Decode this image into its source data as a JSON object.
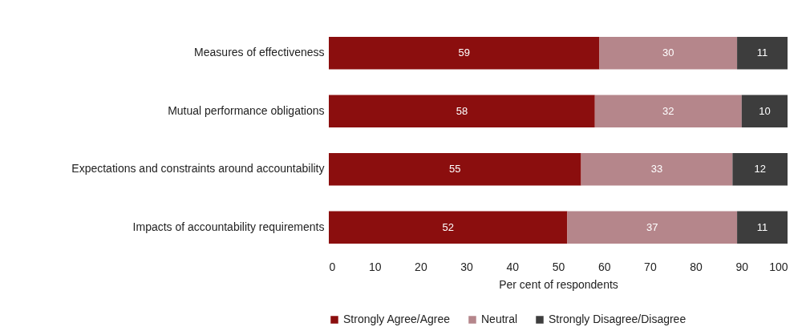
{
  "chart_data": {
    "type": "bar",
    "orientation": "horizontal",
    "stacked": true,
    "data_labels": true,
    "xlabel": "Per cent of respondents",
    "categories": [
      "Measures of effectiveness",
      "Mutual performance obligations",
      "Expectations and constraints around accountability",
      "Impacts of accountability requirements"
    ],
    "series": [
      {
        "name": "Strongly Agree/Agree",
        "color": "#8b0e0e",
        "values": [
          59,
          58,
          55,
          52
        ]
      },
      {
        "name": "Neutral",
        "color": "#b5868b",
        "values": [
          30,
          32,
          33,
          37
        ]
      },
      {
        "name": "Strongly Disagree/Disagree",
        "color": "#3d3d3d",
        "values": [
          11,
          10,
          12,
          11
        ]
      }
    ],
    "xlim": [
      0,
      100
    ],
    "xticks": [
      0,
      10,
      20,
      30,
      40,
      50,
      60,
      70,
      80,
      90,
      100
    ],
    "grid": false,
    "legend": "bottom"
  }
}
